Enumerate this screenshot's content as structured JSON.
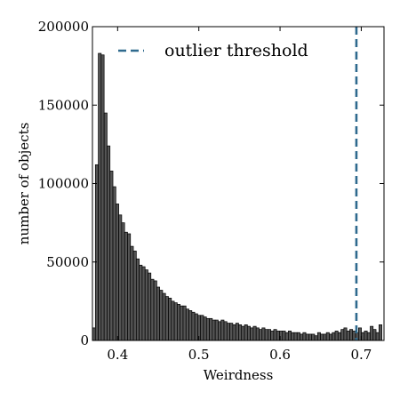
{
  "chart_data": {
    "type": "bar",
    "title": "",
    "xlabel": "Weirdness",
    "ylabel": "number of objects",
    "xlim": [
      0.369,
      0.728
    ],
    "ylim": [
      0,
      200000
    ],
    "x_ticks": [
      0.4,
      0.5,
      0.6,
      0.7
    ],
    "x_tick_labels": [
      "0.4",
      "0.5",
      "0.6",
      "0.7"
    ],
    "y_ticks": [
      0,
      50000,
      100000,
      150000,
      200000
    ],
    "y_tick_labels": [
      "0",
      "50000",
      "100000",
      "150000",
      "200000"
    ],
    "grid": false,
    "bin_start": 0.369,
    "bin_width": 0.0036,
    "values": [
      8000,
      112000,
      183000,
      182000,
      145000,
      124000,
      108000,
      98000,
      87000,
      80000,
      75000,
      69000,
      68000,
      60000,
      57000,
      52000,
      48000,
      47000,
      45000,
      43000,
      39000,
      38000,
      34000,
      32000,
      30000,
      28000,
      27000,
      25000,
      24000,
      23000,
      22000,
      22000,
      20000,
      19000,
      18000,
      17000,
      16000,
      16000,
      15000,
      14000,
      14000,
      13000,
      13000,
      12000,
      13000,
      12000,
      11000,
      11000,
      10000,
      11000,
      10000,
      9000,
      10000,
      9000,
      8000,
      9000,
      8000,
      7000,
      8000,
      7000,
      7000,
      6000,
      7000,
      6000,
      6000,
      6000,
      5000,
      6000,
      5000,
      5000,
      5000,
      4000,
      5000,
      4000,
      4000,
      4000,
      3000,
      5000,
      4000,
      4000,
      5000,
      4000,
      5000,
      6000,
      5000,
      7000,
      8000,
      6000,
      7000,
      6000,
      5000,
      8000,
      5000,
      6000,
      5000,
      9000,
      7000,
      5000,
      10000
    ],
    "threshold": {
      "x": 0.694,
      "label": "outlier threshold",
      "color": "#2f6a8e",
      "style": "dashed"
    },
    "bar_color": "#555555",
    "legend_position": "top-center"
  }
}
